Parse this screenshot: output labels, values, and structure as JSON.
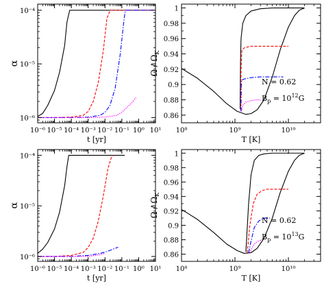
{
  "chart_data": [
    {
      "type": "line",
      "panel": "top-left",
      "xlabel": "t [yr]",
      "ylabel": "α",
      "xscale": "log",
      "yscale": "log",
      "xlim": [
        1e-06,
        10
      ],
      "ylim": [
        8e-07,
        0.00013
      ],
      "xticks": [
        1e-06,
        1e-05,
        0.0001,
        0.001,
        0.01,
        0.1,
        1,
        10
      ],
      "xtick_labels": [
        "10⁻⁶",
        "10⁻⁵",
        "10⁻⁴",
        "10⁻³",
        "10⁻²",
        "10⁻¹",
        "10⁰",
        "10¹"
      ],
      "yticks": [
        1e-06,
        1e-05,
        0.0001
      ],
      "ytick_labels": [
        "10⁻⁶",
        "10⁻⁵",
        "10⁻⁴"
      ],
      "series": [
        {
          "color": "#000000",
          "dash": "",
          "x": [
            1e-06,
            2e-06,
            4e-06,
            1e-05,
            2e-05,
            4e-05,
            5.5e-05,
            8e-05,
            0.001,
            0.01,
            0.1,
            1,
            8
          ],
          "y": [
            1.05e-06,
            1.2e-06,
            1.7e-06,
            3.2e-06,
            7e-06,
            2.2e-05,
            6e-05,
            0.0001,
            0.0001,
            0.0001,
            0.0001,
            0.0001,
            0.0001
          ]
        },
        {
          "color": "#ff0000",
          "dash": "4,2",
          "x": [
            1e-06,
            1e-05,
            0.0001,
            0.0005,
            0.001,
            0.002,
            0.004,
            0.008,
            0.013,
            0.02,
            0.1,
            1,
            8
          ],
          "y": [
            1e-06,
            1e-06,
            1.02e-06,
            1.1e-06,
            1.3e-06,
            2e-06,
            4.5e-06,
            1.8e-05,
            7e-05,
            0.0001,
            0.0001,
            0.0001,
            0.0001
          ]
        },
        {
          "color": "#0000ff",
          "dash": "6,2,1.5,2",
          "x": [
            1e-06,
            0.0001,
            0.001,
            0.005,
            0.01,
            0.02,
            0.04,
            0.08,
            0.13,
            0.16,
            1,
            8
          ],
          "y": [
            1e-06,
            1e-06,
            1.02e-06,
            1.1e-06,
            1.25e-06,
            1.7e-06,
            3.5e-06,
            1.5e-05,
            6e-05,
            0.0001,
            0.0001,
            0.0001
          ]
        },
        {
          "color": "#ff00ff",
          "dash": "1.5,1.5",
          "x": [
            1e-06,
            0.0001,
            0.001,
            0.01,
            0.05,
            0.1,
            0.2,
            0.4,
            0.7
          ],
          "y": [
            1e-06,
            1e-06,
            1e-06,
            1.02e-06,
            1.1e-06,
            1.25e-06,
            1.55e-06,
            1.9e-06,
            2.35e-06
          ]
        }
      ]
    },
    {
      "type": "line",
      "panel": "top-right",
      "xlabel": "T [K]",
      "ylabel": "Ω / Ω_K",
      "xscale": "log",
      "xlim": [
        100000000.0,
        40000000000.0
      ],
      "ylim": [
        0.85,
        1.005
      ],
      "xticks": [
        100000000.0,
        1000000000.0,
        10000000000.0
      ],
      "xtick_labels": [
        "10⁸",
        "10⁹",
        "10¹⁰"
      ],
      "yticks": [
        0.86,
        0.88,
        0.9,
        0.92,
        0.94,
        0.96,
        0.98,
        1
      ],
      "ytick_labels": [
        "0.86",
        "0.88",
        "0.9",
        "0.92",
        "0.94",
        "0.96",
        "0.98",
        "1"
      ],
      "annotations": [
        "N = 0.62",
        "B",
        "p",
        " = 10",
        "12",
        "G"
      ],
      "series": [
        {
          "color": "#000000",
          "dash": "",
          "x": [
            100000000.0,
            200000000.0,
            400000000.0,
            700000000.0,
            1100000000.0,
            1600000000.0,
            2000000000.0,
            2600000000.0,
            3500000000.0,
            5000000000.0,
            7000000000.0,
            10000000000.0,
            13000000000.0,
            16000000000.0,
            20000000000.0
          ],
          "y": [
            0.921,
            0.908,
            0.891,
            0.875,
            0.865,
            0.861,
            0.862,
            0.867,
            0.88,
            0.91,
            0.945,
            0.975,
            0.99,
            0.997,
            1.0
          ]
        },
        {
          "color": "#000000",
          "dash": "",
          "x": [
            1250000000.0,
            1270000000.0,
            1300000000.0,
            1400000000.0,
            1600000000.0,
            2000000000.0,
            3000000000.0,
            5000000000.0,
            10000000000.0,
            20000000000.0
          ],
          "y": [
            0.868,
            0.93,
            0.96,
            0.98,
            0.99,
            0.996,
            0.999,
            1.0,
            1.0,
            1.0
          ]
        },
        {
          "color": "#ff0000",
          "dash": "4,2",
          "x": [
            1280000000.0,
            1300000000.0,
            1350000000.0,
            1500000000.0,
            2000000000.0,
            3000000000.0,
            5000000000.0,
            10000000000.0
          ],
          "y": [
            0.866,
            0.92,
            0.945,
            0.948,
            0.95,
            0.95,
            0.95,
            0.95
          ]
        },
        {
          "color": "#0000ff",
          "dash": "6,2,1.5,2",
          "x": [
            1300000000.0,
            1320000000.0,
            1450000000.0,
            2000000000.0,
            3000000000.0,
            5000000000.0,
            8000000000.0
          ],
          "y": [
            0.865,
            0.905,
            0.907,
            0.909,
            0.91,
            0.91,
            0.91
          ]
        },
        {
          "color": "#ff00ff",
          "dash": "1.5,1.5",
          "x": [
            1320000000.0,
            1400000000.0,
            1600000000.0,
            2000000000.0,
            2500000000.0,
            3000000000.0
          ],
          "y": [
            0.865,
            0.873,
            0.877,
            0.879,
            0.88,
            0.88
          ]
        }
      ]
    },
    {
      "type": "line",
      "panel": "bottom-left",
      "xlabel": "t [yr]",
      "ylabel": "α",
      "xscale": "log",
      "yscale": "log",
      "xlim": [
        1e-06,
        10
      ],
      "ylim": [
        8e-07,
        0.00013
      ],
      "xticks": [
        1e-06,
        1e-05,
        0.0001,
        0.001,
        0.01,
        0.1,
        1,
        10
      ],
      "xtick_labels": [
        "10⁻⁶",
        "10⁻⁵",
        "10⁻⁴",
        "10⁻³",
        "10⁻²",
        "10⁻¹",
        "10⁰",
        "10¹"
      ],
      "yticks": [
        1e-06,
        1e-05,
        0.0001
      ],
      "ytick_labels": [
        "10⁻⁶",
        "10⁻⁵",
        "10⁻⁴"
      ],
      "series": [
        {
          "color": "#000000",
          "dash": "",
          "x": [
            1e-06,
            2e-06,
            4e-06,
            1e-05,
            2e-05,
            4e-05,
            5.5e-05,
            7e-05,
            0.001,
            0.01,
            0.15
          ],
          "y": [
            1.15e-06,
            1.4e-06,
            1.9e-06,
            3.5e-06,
            7.5e-06,
            2.5e-05,
            6e-05,
            0.0001,
            0.0001,
            0.0001,
            0.0001
          ]
        },
        {
          "color": "#ff0000",
          "dash": "4,2",
          "x": [
            1e-06,
            1e-05,
            0.0001,
            0.0005,
            0.001,
            0.002,
            0.004,
            0.008,
            0.015,
            0.025,
            0.03
          ],
          "y": [
            1e-06,
            1e-06,
            1.05e-06,
            1.2e-06,
            1.5e-06,
            2.3e-06,
            5e-06,
            1.6e-05,
            5.5e-05,
            9.5e-05,
            0.0001
          ]
        },
        {
          "color": "#0000ff",
          "dash": "6,2,1.5,2",
          "x": [
            1e-06,
            0.0001,
            0.001,
            0.005,
            0.01,
            0.02,
            0.04,
            0.06
          ],
          "y": [
            1e-06,
            1e-06,
            1.05e-06,
            1.15e-06,
            1.22e-06,
            1.32e-06,
            1.45e-06,
            1.52e-06
          ]
        },
        {
          "color": "#ff00ff",
          "dash": "1.5,1.5",
          "x": [
            1e-06,
            0.0001,
            0.001,
            0.003,
            0.006,
            0.01
          ],
          "y": [
            1e-06,
            1e-06,
            1.01e-06,
            1.05e-06,
            1.1e-06,
            1.15e-06
          ]
        }
      ]
    },
    {
      "type": "line",
      "panel": "bottom-right",
      "xlabel": "T [K]",
      "ylabel": "Ω / Ω_K",
      "xscale": "log",
      "xlim": [
        100000000.0,
        40000000000.0
      ],
      "ylim": [
        0.85,
        1.005
      ],
      "xticks": [
        100000000.0,
        1000000000.0,
        10000000000.0
      ],
      "xtick_labels": [
        "10⁸",
        "10⁹",
        "10¹⁰"
      ],
      "yticks": [
        0.86,
        0.88,
        0.9,
        0.92,
        0.94,
        0.96,
        0.98,
        1
      ],
      "ytick_labels": [
        "0.86",
        "0.88",
        "0.9",
        "0.92",
        "0.94",
        "0.96",
        "0.98",
        "1"
      ],
      "annotations": [
        "N = 0.62",
        "B",
        "p",
        " = 10",
        "13",
        "G"
      ],
      "series": [
        {
          "color": "#000000",
          "dash": "",
          "x": [
            100000000.0,
            200000000.0,
            400000000.0,
            700000000.0,
            1100000000.0,
            1500000000.0,
            2000000000.0,
            2600000000.0,
            3500000000.0,
            5000000000.0,
            7000000000.0,
            10000000000.0,
            13000000000.0,
            16000000000.0,
            20000000000.0
          ],
          "y": [
            0.922,
            0.908,
            0.89,
            0.874,
            0.865,
            0.861,
            0.862,
            0.868,
            0.882,
            0.91,
            0.945,
            0.975,
            0.99,
            0.997,
            1.0
          ]
        },
        {
          "color": "#000000",
          "dash": "",
          "x": [
            1600000000.0,
            1800000000.0,
            2000000000.0,
            2300000000.0,
            2800000000.0,
            3500000000.0,
            5000000000.0,
            10000000000.0,
            20000000000.0
          ],
          "y": [
            0.863,
            0.93,
            0.97,
            0.99,
            0.997,
            0.999,
            1.0,
            1.0,
            1.0
          ]
        },
        {
          "color": "#ff0000",
          "dash": "4,2",
          "x": [
            1700000000.0,
            1900000000.0,
            2200000000.0,
            2600000000.0,
            3200000000.0,
            4000000000.0,
            6000000000.0,
            10000000000.0
          ],
          "y": [
            0.862,
            0.9,
            0.93,
            0.943,
            0.948,
            0.95,
            0.95,
            0.95
          ]
        },
        {
          "color": "#0000ff",
          "dash": "6,2,1.5,2",
          "x": [
            1800000000.0,
            2000000000.0,
            2300000000.0,
            2800000000.0,
            3500000000.0,
            4500000000.0
          ],
          "y": [
            0.862,
            0.878,
            0.897,
            0.906,
            0.91,
            0.91
          ]
        },
        {
          "color": "#ff00ff",
          "dash": "1.5,1.5",
          "x": [
            1850000000.0,
            2000000000.0,
            2300000000.0,
            2700000000.0,
            3200000000.0
          ],
          "y": [
            0.862,
            0.866,
            0.874,
            0.878,
            0.88
          ]
        }
      ]
    }
  ]
}
